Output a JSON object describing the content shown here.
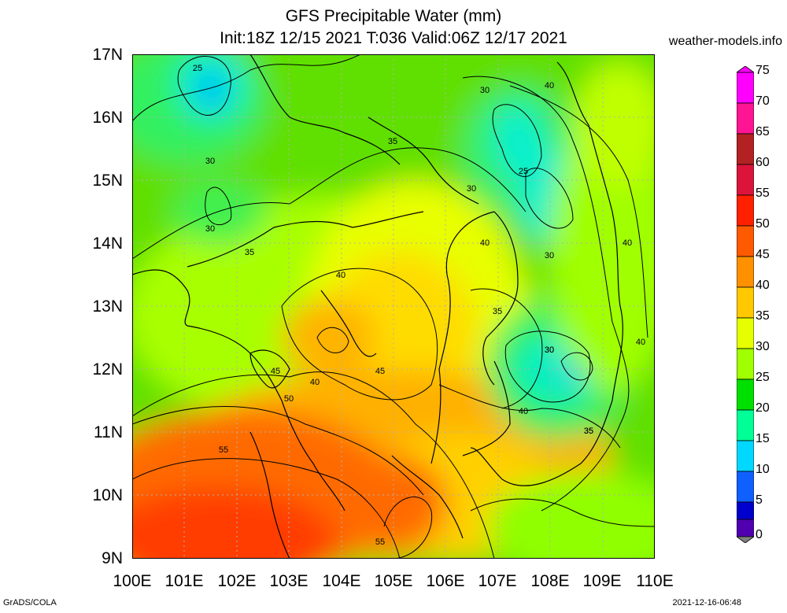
{
  "header": {
    "title_line1": "GFS Precipitable Water (mm)",
    "title_line2": "Init:18Z 12/15 2021 T:036 Valid:06Z 12/17 2021",
    "site": "weather-models.info"
  },
  "footer": {
    "credit": "GrADS/COLA",
    "timestamp": "2021-12-16-06:48"
  },
  "axes": {
    "lat_labels": [
      "17N",
      "16N",
      "15N",
      "14N",
      "13N",
      "12N",
      "11N",
      "10N",
      "9N"
    ],
    "lon_labels": [
      "100E",
      "101E",
      "102E",
      "103E",
      "104E",
      "105E",
      "106E",
      "107E",
      "108E",
      "109E",
      "110E"
    ]
  },
  "colorbar": {
    "labels": [
      "75",
      "70",
      "65",
      "60",
      "55",
      "50",
      "45",
      "40",
      "35",
      "30",
      "25",
      "20",
      "15",
      "10",
      "5",
      "0"
    ],
    "colors": [
      "#ff00ff",
      "#ff1493",
      "#b22222",
      "#dc143c",
      "#ff2000",
      "#ff5a00",
      "#ff9000",
      "#ffc800",
      "#e6ff00",
      "#a0ff00",
      "#00e000",
      "#00ff96",
      "#00d8ff",
      "#1060ff",
      "#0000cc",
      "#5000b0",
      "#404080",
      "#808080"
    ]
  },
  "contour_labels": [
    "25",
    "30",
    "30",
    "35",
    "35",
    "30",
    "30",
    "40",
    "25",
    "30",
    "40",
    "30",
    "40",
    "35",
    "35",
    "40",
    "30",
    "40",
    "45",
    "45",
    "40",
    "50",
    "40",
    "55",
    "35",
    "55"
  ]
}
